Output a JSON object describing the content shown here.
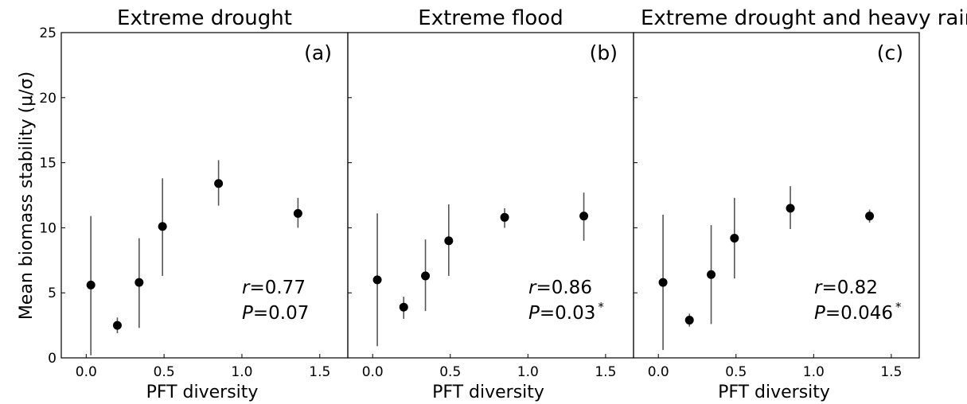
{
  "figure": {
    "ylabel": "Mean biomass stability (μ/σ)",
    "yticks": [
      0,
      5,
      10,
      15,
      20,
      25
    ],
    "xticks": [
      0.0,
      0.5,
      1.0,
      1.5
    ],
    "ytick_labels": [
      "0",
      "5",
      "10",
      "15",
      "20",
      "25"
    ],
    "xtick_labels": [
      "0.0",
      "0.5",
      "1.0",
      "1.5"
    ],
    "colors": {
      "marker": "#000000",
      "errorbar": "#555555",
      "axes": "#000000"
    }
  },
  "chart_data": [
    {
      "type": "scatter",
      "title": "Extreme drought",
      "panel_label": "(a)",
      "xlabel": "PFT diversity",
      "ylabel": "Mean biomass stability (μ/σ)",
      "xlim": [
        -0.16,
        1.68
      ],
      "ylim": [
        0,
        25
      ],
      "stat_r": "0.77",
      "stat_p": "0.07",
      "stat_sig": "",
      "points": [
        {
          "x": 0.03,
          "y": 5.6,
          "low": 0.2,
          "high": 10.9
        },
        {
          "x": 0.2,
          "y": 2.5,
          "low": 1.9,
          "high": 3.1
        },
        {
          "x": 0.34,
          "y": 5.8,
          "low": 2.3,
          "high": 9.2
        },
        {
          "x": 0.49,
          "y": 10.1,
          "low": 6.3,
          "high": 13.8
        },
        {
          "x": 0.85,
          "y": 13.4,
          "low": 11.7,
          "high": 15.2
        },
        {
          "x": 1.36,
          "y": 11.1,
          "low": 10.0,
          "high": 12.3
        }
      ]
    },
    {
      "type": "scatter",
      "title": "Extreme flood",
      "panel_label": "(b)",
      "xlabel": "PFT diversity",
      "ylabel": "",
      "xlim": [
        -0.16,
        1.68
      ],
      "ylim": [
        0,
        25
      ],
      "stat_r": "0.86",
      "stat_p": "0.03",
      "stat_sig": "*",
      "points": [
        {
          "x": 0.03,
          "y": 6.0,
          "low": 0.9,
          "high": 11.1
        },
        {
          "x": 0.2,
          "y": 3.9,
          "low": 3.0,
          "high": 4.7
        },
        {
          "x": 0.34,
          "y": 6.3,
          "low": 3.6,
          "high": 9.1
        },
        {
          "x": 0.49,
          "y": 9.0,
          "low": 6.3,
          "high": 11.8
        },
        {
          "x": 0.85,
          "y": 10.8,
          "low": 10.0,
          "high": 11.5
        },
        {
          "x": 1.36,
          "y": 10.9,
          "low": 9.0,
          "high": 12.7
        }
      ]
    },
    {
      "type": "scatter",
      "title": "Extreme drought and heavy rain",
      "panel_label": "(c)",
      "xlabel": "PFT diversity",
      "ylabel": "",
      "xlim": [
        -0.16,
        1.68
      ],
      "ylim": [
        0,
        25
      ],
      "stat_r": "0.82",
      "stat_p": "0.046",
      "stat_sig": "*",
      "points": [
        {
          "x": 0.03,
          "y": 5.8,
          "low": 0.6,
          "high": 11.0
        },
        {
          "x": 0.2,
          "y": 2.9,
          "low": 2.4,
          "high": 3.4
        },
        {
          "x": 0.34,
          "y": 6.4,
          "low": 2.6,
          "high": 10.2
        },
        {
          "x": 0.49,
          "y": 9.2,
          "low": 6.1,
          "high": 12.3
        },
        {
          "x": 0.85,
          "y": 11.5,
          "low": 9.9,
          "high": 13.2
        },
        {
          "x": 1.36,
          "y": 10.9,
          "low": 10.4,
          "high": 11.4
        }
      ]
    }
  ]
}
